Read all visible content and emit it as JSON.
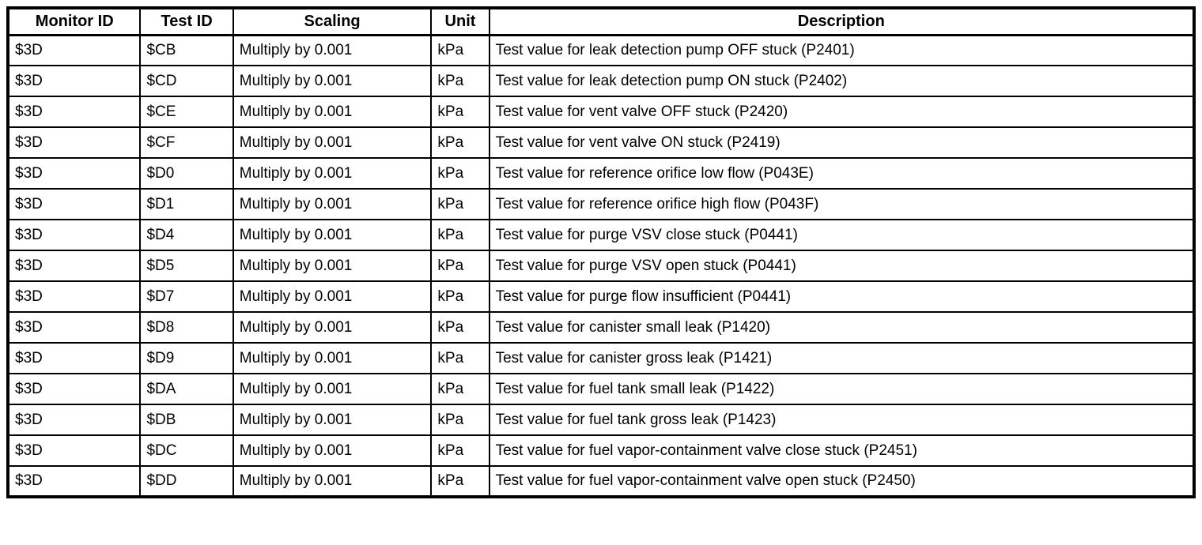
{
  "table": {
    "columns": [
      {
        "key": "monitor_id",
        "label": "Monitor ID"
      },
      {
        "key": "test_id",
        "label": "Test ID"
      },
      {
        "key": "scaling",
        "label": "Scaling"
      },
      {
        "key": "unit",
        "label": "Unit"
      },
      {
        "key": "description",
        "label": "Description"
      }
    ],
    "rows": [
      {
        "monitor_id": "$3D",
        "test_id": "$CB",
        "scaling": "Multiply by 0.001",
        "unit": "kPa",
        "description": "Test value for leak detection pump OFF stuck (P2401)"
      },
      {
        "monitor_id": "$3D",
        "test_id": "$CD",
        "scaling": "Multiply by 0.001",
        "unit": "kPa",
        "description": "Test value for leak detection pump ON stuck (P2402)"
      },
      {
        "monitor_id": "$3D",
        "test_id": "$CE",
        "scaling": "Multiply by 0.001",
        "unit": "kPa",
        "description": "Test value for vent valve OFF stuck (P2420)"
      },
      {
        "monitor_id": "$3D",
        "test_id": "$CF",
        "scaling": "Multiply by 0.001",
        "unit": "kPa",
        "description": "Test value for vent valve ON stuck (P2419)"
      },
      {
        "monitor_id": "$3D",
        "test_id": "$D0",
        "scaling": "Multiply by 0.001",
        "unit": "kPa",
        "description": "Test value for reference orifice low flow (P043E)"
      },
      {
        "monitor_id": "$3D",
        "test_id": "$D1",
        "scaling": "Multiply by 0.001",
        "unit": "kPa",
        "description": "Test value for reference orifice high flow (P043F)"
      },
      {
        "monitor_id": "$3D",
        "test_id": "$D4",
        "scaling": "Multiply by 0.001",
        "unit": "kPa",
        "description": "Test value for purge VSV close stuck (P0441)"
      },
      {
        "monitor_id": "$3D",
        "test_id": "$D5",
        "scaling": "Multiply by 0.001",
        "unit": "kPa",
        "description": "Test value for purge VSV open stuck (P0441)"
      },
      {
        "monitor_id": "$3D",
        "test_id": "$D7",
        "scaling": "Multiply by 0.001",
        "unit": "kPa",
        "description": "Test value for purge flow insufficient (P0441)"
      },
      {
        "monitor_id": "$3D",
        "test_id": "$D8",
        "scaling": "Multiply by 0.001",
        "unit": "kPa",
        "description": "Test value for canister small leak (P1420)"
      },
      {
        "monitor_id": "$3D",
        "test_id": "$D9",
        "scaling": "Multiply by 0.001",
        "unit": "kPa",
        "description": "Test value for canister gross leak (P1421)"
      },
      {
        "monitor_id": "$3D",
        "test_id": "$DA",
        "scaling": "Multiply by 0.001",
        "unit": "kPa",
        "description": "Test value for fuel tank small leak (P1422)"
      },
      {
        "monitor_id": "$3D",
        "test_id": "$DB",
        "scaling": "Multiply by 0.001",
        "unit": "kPa",
        "description": "Test value for fuel tank gross leak (P1423)"
      },
      {
        "monitor_id": "$3D",
        "test_id": "$DC",
        "scaling": "Multiply by 0.001",
        "unit": "kPa",
        "description": "Test value for fuel vapor-containment valve close stuck (P2451)"
      },
      {
        "monitor_id": "$3D",
        "test_id": "$DD",
        "scaling": "Multiply by 0.001",
        "unit": "kPa",
        "description": "Test value for fuel vapor-containment valve open stuck (P2450)"
      }
    ]
  },
  "colors": {
    "border": "#000000",
    "text": "#000000",
    "background": "#ffffff"
  }
}
